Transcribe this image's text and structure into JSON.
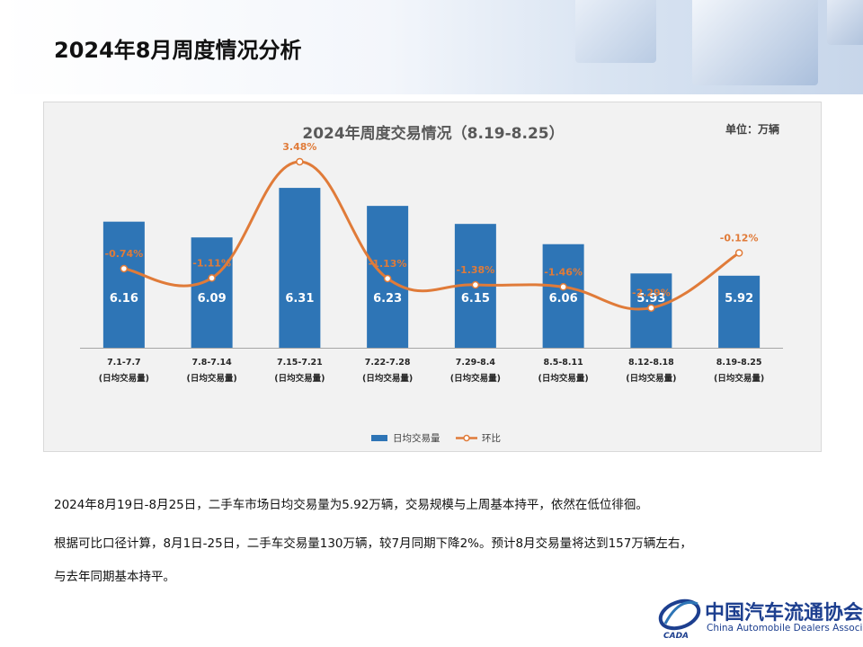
{
  "page": {
    "title": "2024年8月周度情况分析"
  },
  "chart_data": {
    "type": "bar",
    "title": "2024年周度交易情况（8.19-8.25）",
    "unit_label": "单位：万辆",
    "categories": [
      "7.1-7.7",
      "7.8-7.14",
      "7.15-7.21",
      "7.22-7.28",
      "7.29-8.4",
      "8.5-8.11",
      "8.12-8.18",
      "8.19-8.25"
    ],
    "category_sublabel": "(日均交易量)",
    "series": [
      {
        "name": "日均交易量",
        "type": "bar",
        "color": "#2e75b6",
        "values": [
          6.16,
          6.09,
          6.31,
          6.23,
          6.15,
          6.06,
          5.93,
          5.92
        ],
        "labels": [
          "6.16",
          "6.09",
          "6.31",
          "6.23",
          "6.15",
          "6.06",
          "5.93",
          "5.92"
        ]
      },
      {
        "name": "环比",
        "type": "line",
        "color": "#e07b39",
        "values": [
          -0.74,
          -1.11,
          3.48,
          -1.13,
          -1.38,
          -1.46,
          -2.29,
          -0.12
        ],
        "labels": [
          "-0.74%",
          "-1.11%",
          "3.48%",
          "-1.13%",
          "-1.38%",
          "-1.46%",
          "-2.29%",
          "-0.12%"
        ]
      }
    ],
    "ylim_bar": [
      5.6,
      6.45
    ],
    "ylim_line": [
      -3.4,
      4.4
    ],
    "legend_position": "bottom",
    "grid": false
  },
  "text": {
    "line1": "2024年8月19日-8月25日，二手车市场日均交易量为5.92万辆，交易规模与上周基本持平，依然在低位徘徊。",
    "line2": "根据可比口径计算，8月1日-25日，二手车交易量130万辆，较7月同期下降2%。预计8月交易量将达到157万辆左右，",
    "line3": "与去年同期基本持平。"
  },
  "logo": {
    "cn": "中国汽车流通协会",
    "en": "China Automobile Dealers Association",
    "mark": "CADA"
  }
}
